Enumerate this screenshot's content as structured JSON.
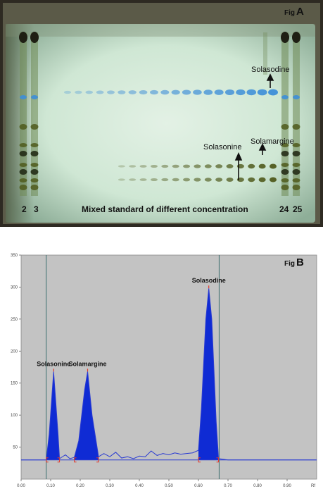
{
  "figA": {
    "label_prefix": "Fig",
    "label_letter": "A",
    "annotations": {
      "solasodine": "Solasodine",
      "solasonine": "Solasonine",
      "solamargine": "Solamargine"
    },
    "lane_labels": [
      "2",
      "3",
      "24",
      "25"
    ],
    "caption": "Mixed standard of different concentration",
    "colors": {
      "plate_bg": "#cfe7d4",
      "frame": "#2e2a22",
      "blue_band": "#3d8ed8",
      "olive_band": "#4f5a1c"
    }
  },
  "figB": {
    "label_prefix": "Fig",
    "label_letter": "B",
    "chart_data": {
      "type": "line",
      "title": "",
      "xlabel": "",
      "ylabel": "",
      "x_unit": "Rf",
      "xlim": [
        0.0,
        1.0
      ],
      "ylim": [
        0,
        350
      ],
      "x_ticks": [
        "0.00",
        "0.10",
        "0.20",
        "0.30",
        "0.40",
        "0.50",
        "0.60",
        "0.70",
        "0.80",
        "0.90"
      ],
      "y_ticks": [
        "50",
        "100",
        "150",
        "200",
        "250",
        "300",
        "350"
      ],
      "baseline": 30,
      "front_lines": [
        0.085,
        0.67
      ],
      "peaks": [
        {
          "name": "Solasonine",
          "rf": 0.11,
          "height": 168,
          "start": 0.085,
          "end": 0.13
        },
        {
          "name": "Solamargine",
          "rf": 0.225,
          "height": 168,
          "start": 0.18,
          "end": 0.262
        },
        {
          "name": "Solasodine",
          "rf": 0.635,
          "height": 298,
          "start": 0.6,
          "end": 0.668
        }
      ],
      "trace": [
        [
          0.0,
          30
        ],
        [
          0.085,
          30
        ],
        [
          0.095,
          70
        ],
        [
          0.11,
          168
        ],
        [
          0.125,
          70
        ],
        [
          0.13,
          32
        ],
        [
          0.15,
          38
        ],
        [
          0.165,
          32
        ],
        [
          0.18,
          34
        ],
        [
          0.195,
          60
        ],
        [
          0.215,
          140
        ],
        [
          0.225,
          168
        ],
        [
          0.24,
          100
        ],
        [
          0.262,
          35
        ],
        [
          0.28,
          40
        ],
        [
          0.3,
          35
        ],
        [
          0.32,
          42
        ],
        [
          0.34,
          33
        ],
        [
          0.36,
          35
        ],
        [
          0.38,
          32
        ],
        [
          0.4,
          36
        ],
        [
          0.42,
          35
        ],
        [
          0.44,
          44
        ],
        [
          0.46,
          37
        ],
        [
          0.48,
          40
        ],
        [
          0.5,
          38
        ],
        [
          0.52,
          41
        ],
        [
          0.54,
          39
        ],
        [
          0.56,
          40
        ],
        [
          0.58,
          41
        ],
        [
          0.6,
          45
        ],
        [
          0.61,
          110
        ],
        [
          0.625,
          250
        ],
        [
          0.635,
          298
        ],
        [
          0.645,
          250
        ],
        [
          0.66,
          90
        ],
        [
          0.668,
          32
        ],
        [
          0.7,
          30
        ],
        [
          1.0,
          30
        ]
      ],
      "colors": {
        "plot_bg": "#c3c3c3",
        "peak_fill": "#0f2bd4",
        "trace": "#2a3bd2",
        "front_line": "#3b6e6e",
        "peak_marker": "#e0392b",
        "axis_text": "#444444"
      }
    }
  }
}
